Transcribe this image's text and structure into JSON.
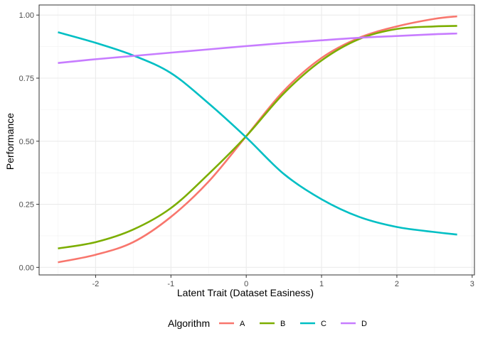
{
  "chart_data": {
    "type": "line",
    "xlabel": "Latent Trait (Dataset Easiness)",
    "ylabel": "Performance",
    "xlim": [
      -2.75,
      3.03
    ],
    "ylim": [
      -0.03,
      1.04
    ],
    "x_ticks": [
      -2,
      -1,
      0,
      1,
      2,
      3
    ],
    "y_ticks": [
      0.0,
      0.25,
      0.5,
      0.75,
      1.0
    ],
    "x_tick_labels": [
      "-2",
      "-1",
      "0",
      "1",
      "2",
      "3"
    ],
    "y_tick_labels": [
      "0.00",
      "0.25",
      "0.50",
      "0.75",
      "1.00"
    ],
    "grid": true,
    "legend": {
      "title": "Algorithm",
      "position": "bottom"
    },
    "x": [
      -2.5,
      -2.0,
      -1.5,
      -1.0,
      -0.5,
      0.0,
      0.5,
      1.0,
      1.5,
      2.0,
      2.5,
      2.8
    ],
    "series": [
      {
        "name": "A",
        "color": "#F8766D",
        "values": [
          0.02,
          0.05,
          0.1,
          0.2,
          0.34,
          0.52,
          0.7,
          0.83,
          0.91,
          0.955,
          0.985,
          0.995
        ]
      },
      {
        "name": "B",
        "color": "#7CAE00",
        "values": [
          0.075,
          0.1,
          0.15,
          0.235,
          0.37,
          0.52,
          0.69,
          0.82,
          0.905,
          0.945,
          0.955,
          0.957
        ]
      },
      {
        "name": "C",
        "color": "#00BFC4",
        "values": [
          0.932,
          0.89,
          0.84,
          0.77,
          0.65,
          0.515,
          0.37,
          0.27,
          0.2,
          0.16,
          0.14,
          0.13
        ]
      },
      {
        "name": "D",
        "color": "#C77CFF",
        "values": [
          0.81,
          0.825,
          0.838,
          0.851,
          0.864,
          0.877,
          0.889,
          0.9,
          0.91,
          0.917,
          0.924,
          0.927
        ]
      }
    ]
  }
}
